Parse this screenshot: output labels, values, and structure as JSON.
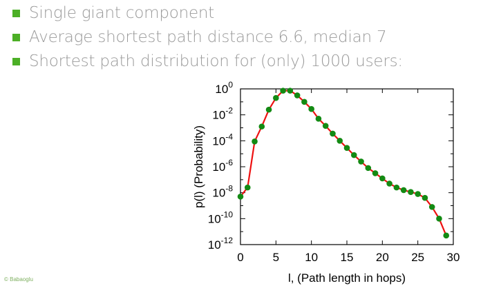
{
  "slide": {
    "bullets": [
      "Single giant component",
      "Average shortest path distance 6.6, median 7",
      "Shortest path distribution for (only) 1000 users:"
    ],
    "credit": "© Babaoglu",
    "accent_color": "#4caf26"
  },
  "chart_data": {
    "type": "line",
    "title": "",
    "xlabel": "l, (Path length in hops)",
    "ylabel": "p(l) (Probability)",
    "xlim": [
      0,
      30
    ],
    "ylim_log10": [
      -12,
      0
    ],
    "xticks": [
      0,
      5,
      10,
      15,
      20,
      25,
      30
    ],
    "yticks": [
      {
        "mantissa": "10",
        "exponent": "0"
      },
      {
        "mantissa": "10",
        "exponent": "-2"
      },
      {
        "mantissa": "10",
        "exponent": "-4"
      },
      {
        "mantissa": "10",
        "exponent": "-6"
      },
      {
        "mantissa": "10",
        "exponent": "-8"
      },
      {
        "mantissa": "10",
        "exponent": "-10"
      },
      {
        "mantissa": "10",
        "exponent": "-12"
      }
    ],
    "ytick_values_log10": [
      0,
      -2,
      -4,
      -6,
      -8,
      -10,
      -12
    ],
    "y_scale": "log",
    "line_color": "#ee1111",
    "marker_color": "#138a13",
    "x": [
      0,
      1,
      2,
      3,
      4,
      5,
      6,
      7,
      8,
      9,
      10,
      11,
      12,
      13,
      14,
      15,
      16,
      17,
      18,
      19,
      20,
      21,
      22,
      23,
      24,
      25,
      26,
      27,
      28,
      29
    ],
    "log10_p": [
      -8.3,
      -7.6,
      -4.05,
      -2.9,
      -1.6,
      -0.7,
      -0.14,
      -0.14,
      -0.5,
      -1.0,
      -1.55,
      -2.3,
      -2.85,
      -3.45,
      -4.0,
      -4.55,
      -5.1,
      -5.6,
      -6.1,
      -6.5,
      -6.9,
      -7.3,
      -7.6,
      -7.8,
      -7.95,
      -8.1,
      -8.4,
      -9.1,
      -10.0,
      -11.3
    ]
  }
}
